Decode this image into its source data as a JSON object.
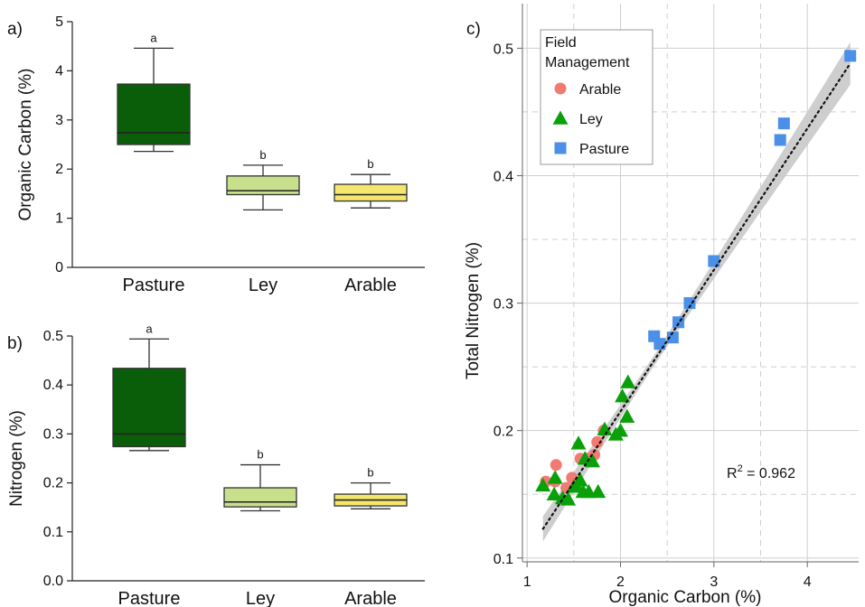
{
  "chart_data": [
    {
      "panel": "a)",
      "type": "box",
      "ylabel": "Organic Carbon (%)",
      "xlabel": "",
      "ylim": [
        0,
        5
      ],
      "yticks": [
        "0",
        "1",
        "2",
        "3",
        "4",
        "5"
      ],
      "categories": [
        "Pasture",
        "Ley",
        "Arable"
      ],
      "boxes": [
        {
          "category": "Pasture",
          "min": 2.36,
          "q1": 2.5,
          "median": 2.74,
          "q3": 3.73,
          "max": 4.46,
          "letter": "a",
          "color": "#0a5e0a"
        },
        {
          "category": "Ley",
          "min": 1.17,
          "q1": 1.48,
          "median": 1.56,
          "q3": 1.86,
          "max": 2.08,
          "letter": "b",
          "color": "#c8e08c"
        },
        {
          "category": "Arable",
          "min": 1.21,
          "q1": 1.35,
          "median": 1.48,
          "q3": 1.69,
          "max": 1.89,
          "letter": "b",
          "color": "#f5e66e"
        }
      ]
    },
    {
      "panel": "b)",
      "type": "box",
      "ylabel": "Nitrogen (%)",
      "xlabel": "",
      "ylim": [
        0,
        0.5
      ],
      "yticks": [
        "0.0",
        "0.1",
        "0.2",
        "0.3",
        "0.4",
        "0.5"
      ],
      "categories": [
        "Pasture",
        "Ley",
        "Arable"
      ],
      "boxes": [
        {
          "category": "Pasture",
          "min": 0.266,
          "q1": 0.274,
          "median": 0.3,
          "q3": 0.434,
          "max": 0.494,
          "letter": "a",
          "color": "#0a5e0a"
        },
        {
          "category": "Ley",
          "min": 0.143,
          "q1": 0.151,
          "median": 0.161,
          "q3": 0.19,
          "max": 0.237,
          "letter": "b",
          "color": "#c8e08c"
        },
        {
          "category": "Arable",
          "min": 0.147,
          "q1": 0.153,
          "median": 0.165,
          "q3": 0.177,
          "max": 0.2,
          "letter": "b",
          "color": "#f5e66e"
        }
      ]
    },
    {
      "panel": "c)",
      "type": "scatter",
      "xlabel": "Organic Carbon (%)",
      "ylabel": "Total  Nitrogen (%)",
      "xlim": [
        0.95,
        4.55
      ],
      "ylim": [
        0.097,
        0.535
      ],
      "xticks": [
        1,
        2,
        3,
        4
      ],
      "yticks": [
        "0.1",
        "0.2",
        "0.3",
        "0.4",
        "0.5"
      ],
      "grid": true,
      "legend": {
        "title_line1": "Field",
        "title_line2": "Management",
        "placement": "top-left"
      },
      "annotation": {
        "label": "R",
        "sup": "2",
        "value": " = 0.962"
      },
      "fit": {
        "slope": 0.111,
        "intercept": -0.007,
        "x_range": [
          1.17,
          4.46
        ]
      },
      "series": [
        {
          "name": "Arable",
          "marker": "circle",
          "color": "#f07b72",
          "points": [
            [
              1.2,
              0.16
            ],
            [
              1.31,
              0.173
            ],
            [
              1.3,
              0.16
            ],
            [
              1.42,
              0.155
            ],
            [
              1.48,
              0.163
            ],
            [
              1.57,
              0.178
            ],
            [
              1.64,
              0.178
            ],
            [
              1.72,
              0.181
            ],
            [
              1.75,
              0.191
            ],
            [
              1.82,
              0.2
            ]
          ]
        },
        {
          "name": "Ley",
          "marker": "triangle",
          "color": "#0aa00a",
          "points": [
            [
              1.17,
              0.157
            ],
            [
              1.29,
              0.15
            ],
            [
              1.3,
              0.163
            ],
            [
              1.38,
              0.147
            ],
            [
              1.44,
              0.146
            ],
            [
              1.5,
              0.156
            ],
            [
              1.53,
              0.156
            ],
            [
              1.55,
              0.19
            ],
            [
              1.57,
              0.161
            ],
            [
              1.6,
              0.152
            ],
            [
              1.62,
              0.178
            ],
            [
              1.66,
              0.152
            ],
            [
              1.7,
              0.176
            ],
            [
              1.76,
              0.152
            ],
            [
              1.83,
              0.201
            ],
            [
              1.95,
              0.197
            ],
            [
              2.0,
              0.2
            ],
            [
              2.02,
              0.227
            ],
            [
              2.07,
              0.211
            ],
            [
              2.08,
              0.238
            ]
          ]
        },
        {
          "name": "Pasture",
          "marker": "square",
          "color": "#4a8fe8",
          "points": [
            [
              2.36,
              0.274
            ],
            [
              2.42,
              0.268
            ],
            [
              2.56,
              0.273
            ],
            [
              2.62,
              0.285
            ],
            [
              2.74,
              0.3
            ],
            [
              3.0,
              0.333
            ],
            [
              3.71,
              0.428
            ],
            [
              3.75,
              0.441
            ],
            [
              4.46,
              0.494
            ]
          ]
        }
      ]
    }
  ]
}
